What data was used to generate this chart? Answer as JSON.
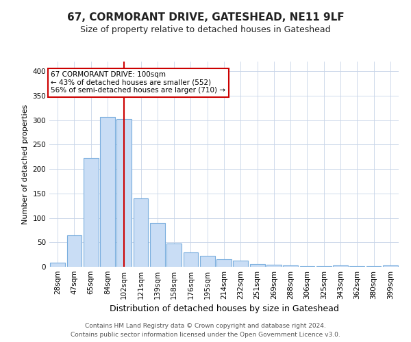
{
  "title": "67, CORMORANT DRIVE, GATESHEAD, NE11 9LF",
  "subtitle": "Size of property relative to detached houses in Gateshead",
  "xlabel": "Distribution of detached houses by size in Gateshead",
  "ylabel": "Number of detached properties",
  "categories": [
    "28sqm",
    "47sqm",
    "65sqm",
    "84sqm",
    "102sqm",
    "121sqm",
    "139sqm",
    "158sqm",
    "176sqm",
    "195sqm",
    "214sqm",
    "232sqm",
    "251sqm",
    "269sqm",
    "288sqm",
    "306sqm",
    "325sqm",
    "343sqm",
    "362sqm",
    "380sqm",
    "399sqm"
  ],
  "values": [
    8,
    64,
    222,
    307,
    303,
    140,
    90,
    47,
    30,
    22,
    16,
    12,
    5,
    4,
    3,
    2,
    2,
    3,
    2,
    2,
    3
  ],
  "bar_color": "#c9ddf5",
  "bar_edge_color": "#7aaede",
  "highlight_index": 4,
  "highlight_line_color": "#cc0000",
  "annotation_text": "67 CORMORANT DRIVE: 100sqm\n← 43% of detached houses are smaller (552)\n56% of semi-detached houses are larger (710) →",
  "annotation_box_color": "#ffffff",
  "annotation_box_edge": "#cc0000",
  "ylim": [
    0,
    420
  ],
  "yticks": [
    0,
    50,
    100,
    150,
    200,
    250,
    300,
    350,
    400
  ],
  "footer1": "Contains HM Land Registry data © Crown copyright and database right 2024.",
  "footer2": "Contains public sector information licensed under the Open Government Licence v3.0.",
  "bg_color": "#ffffff",
  "grid_color": "#c8d4e8",
  "title_fontsize": 11,
  "subtitle_fontsize": 9,
  "tick_fontsize": 7.5,
  "ylabel_fontsize": 8,
  "xlabel_fontsize": 9,
  "footer_fontsize": 6.5
}
